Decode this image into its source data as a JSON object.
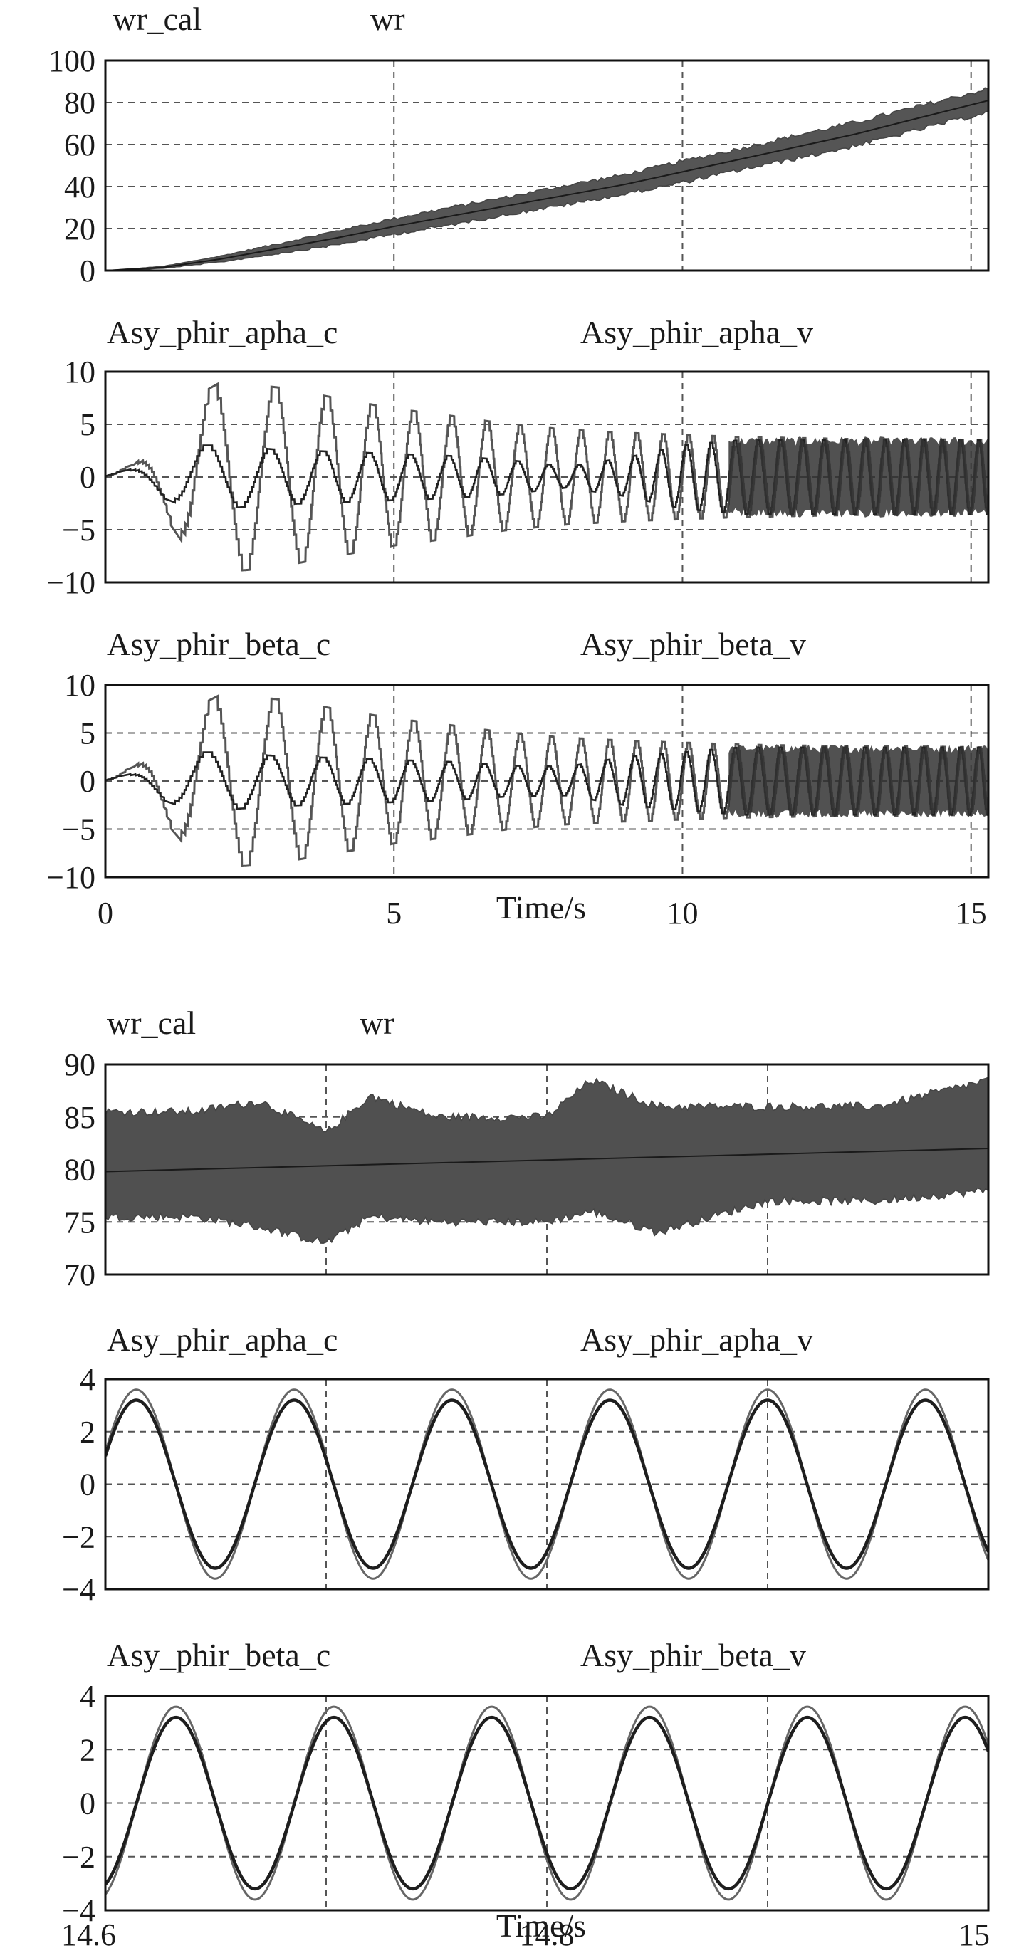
{
  "chart_data": [
    {
      "type": "line",
      "group": "full",
      "legend": [
        "wr_cal",
        "wr"
      ],
      "xlim": [
        0,
        15.3
      ],
      "ylim": [
        0,
        100
      ],
      "yticks": [
        0,
        20,
        40,
        60,
        80,
        100
      ],
      "xticks": [
        0,
        5,
        10,
        15
      ],
      "grid": true,
      "series": [
        {
          "name": "wr_cal",
          "x": [
            0,
            1,
            2,
            3,
            4,
            5,
            6,
            7,
            8,
            9,
            10,
            11,
            12,
            13,
            14,
            15.3
          ],
          "y": [
            0,
            1.5,
            5.5,
            10.5,
            15.5,
            21,
            26,
            31,
            36,
            41,
            47,
            53,
            59,
            65,
            72,
            81
          ],
          "band_halfwidth": [
            0,
            0.5,
            1.5,
            2.5,
            3.5,
            4,
            4.5,
            4.5,
            5,
            5,
            5.5,
            5.5,
            6,
            6,
            6,
            6
          ]
        },
        {
          "name": "wr",
          "x": [
            0,
            1,
            2,
            3,
            4,
            5,
            6,
            7,
            8,
            9,
            10,
            11,
            12,
            13,
            14,
            15.3
          ],
          "y": [
            0,
            1.5,
            5.5,
            10.5,
            15.5,
            21,
            26,
            31,
            36,
            41,
            47,
            53,
            59,
            65,
            72,
            81
          ]
        }
      ]
    },
    {
      "type": "line",
      "group": "full",
      "legend": [
        "Asy_phir_apha_c",
        "Asy_phir_apha_v"
      ],
      "xlim": [
        0,
        15.3
      ],
      "ylim": [
        -10,
        10
      ],
      "yticks": [
        -10,
        -5,
        0,
        5,
        10
      ],
      "xticks": [
        0,
        5,
        10,
        15
      ],
      "grid": true,
      "envelope": {
        "x": [
          0,
          0.5,
          1,
          1.5,
          2,
          2.5,
          3,
          4,
          5,
          6,
          7,
          8,
          9,
          10,
          11,
          12,
          13,
          14,
          15.3
        ],
        "c_amp": [
          0.3,
          1.2,
          3.5,
          7.5,
          9,
          8.8,
          8.5,
          7.5,
          6.5,
          5.8,
          5,
          4.5,
          4.2,
          4,
          3.8,
          3.7,
          3.6,
          3.6,
          3.5
        ],
        "v_amp": [
          0.2,
          0.8,
          2,
          3,
          3,
          2.8,
          2.6,
          2.4,
          2.2,
          2,
          1.6,
          1,
          1.8,
          3,
          3.5,
          3.5,
          3.5,
          3.5,
          3.5
        ]
      }
    },
    {
      "type": "line",
      "group": "full",
      "legend": [
        "Asy_phir_beta_c",
        "Asy_phir_beta_v"
      ],
      "xlim": [
        0,
        15.3
      ],
      "ylim": [
        -10,
        10
      ],
      "yticks": [
        -10,
        -5,
        0,
        5,
        10
      ],
      "xticks": [
        0,
        5,
        10,
        15
      ],
      "xtick_labels": [
        "0",
        "5",
        "10",
        "15"
      ],
      "xlabel": "Time/s",
      "grid": true,
      "envelope": {
        "x": [
          0,
          0.5,
          1,
          1.5,
          2,
          2.5,
          3,
          4,
          5,
          6,
          7,
          8,
          9,
          10,
          11,
          12,
          13,
          14,
          15.3
        ],
        "c_amp": [
          0.3,
          1.5,
          4,
          7.5,
          9,
          8.8,
          8.5,
          7.5,
          6.5,
          5.8,
          5,
          4.5,
          4.2,
          4,
          3.8,
          3.7,
          3.6,
          3.6,
          3.5
        ],
        "v_amp": [
          0.2,
          0.8,
          2,
          3,
          3,
          2.8,
          2.6,
          2.4,
          2.2,
          2,
          1.6,
          1.5,
          2.5,
          3,
          3.5,
          3.5,
          3.5,
          3.5,
          3.5
        ]
      }
    },
    {
      "type": "line",
      "group": "zoom",
      "legend": [
        "wr_cal",
        "wr"
      ],
      "xlim": [
        14.6,
        15.0
      ],
      "ylim": [
        70,
        90
      ],
      "yticks": [
        70,
        75,
        80,
        85,
        90
      ],
      "xticks": [
        14.6,
        14.7,
        14.8,
        14.9,
        15.0
      ],
      "grid": true,
      "series": [
        {
          "name": "wr_cal",
          "x": [
            14.6,
            14.64,
            14.67,
            14.7,
            14.72,
            14.75,
            14.8,
            14.82,
            14.85,
            14.9,
            14.95,
            15.0
          ],
          "upper": [
            85.5,
            85.5,
            86.5,
            83.5,
            87,
            85,
            85,
            88.5,
            86,
            86,
            86,
            88.5
          ],
          "lower": [
            75.5,
            75.5,
            74.5,
            73,
            75.5,
            75,
            75,
            76,
            74,
            77,
            77,
            78
          ]
        },
        {
          "name": "wr",
          "x": [
            14.6,
            15.0
          ],
          "y": [
            79.8,
            82
          ]
        }
      ]
    },
    {
      "type": "line",
      "group": "zoom",
      "legend": [
        "Asy_phir_apha_c",
        "Asy_phir_apha_v"
      ],
      "xlim": [
        14.6,
        15.0
      ],
      "ylim": [
        -4,
        4
      ],
      "yticks": [
        -4,
        -2,
        0,
        2,
        4
      ],
      "xticks": [
        14.6,
        14.7,
        14.8,
        14.9,
        15.0
      ],
      "grid": true,
      "wave": {
        "period": 0.0715,
        "first_peak": 14.614,
        "c_amp": 3.6,
        "v_amp": 3.2
      }
    },
    {
      "type": "line",
      "group": "zoom",
      "legend": [
        "Asy_phir_beta_c",
        "Asy_phir_beta_v"
      ],
      "xlim": [
        14.6,
        15.0
      ],
      "ylim": [
        -4,
        4
      ],
      "yticks": [
        -4,
        -2,
        0,
        2,
        4
      ],
      "xticks": [
        14.6,
        14.7,
        14.8,
        14.9,
        15.0
      ],
      "xtick_labels": [
        "14.6",
        "",
        "14.8",
        "",
        "15"
      ],
      "xlabel": "Time/s",
      "grid": true,
      "wave": {
        "period": 0.0715,
        "first_peak": 14.632,
        "c_amp": 3.6,
        "v_amp": 3.2
      }
    }
  ]
}
